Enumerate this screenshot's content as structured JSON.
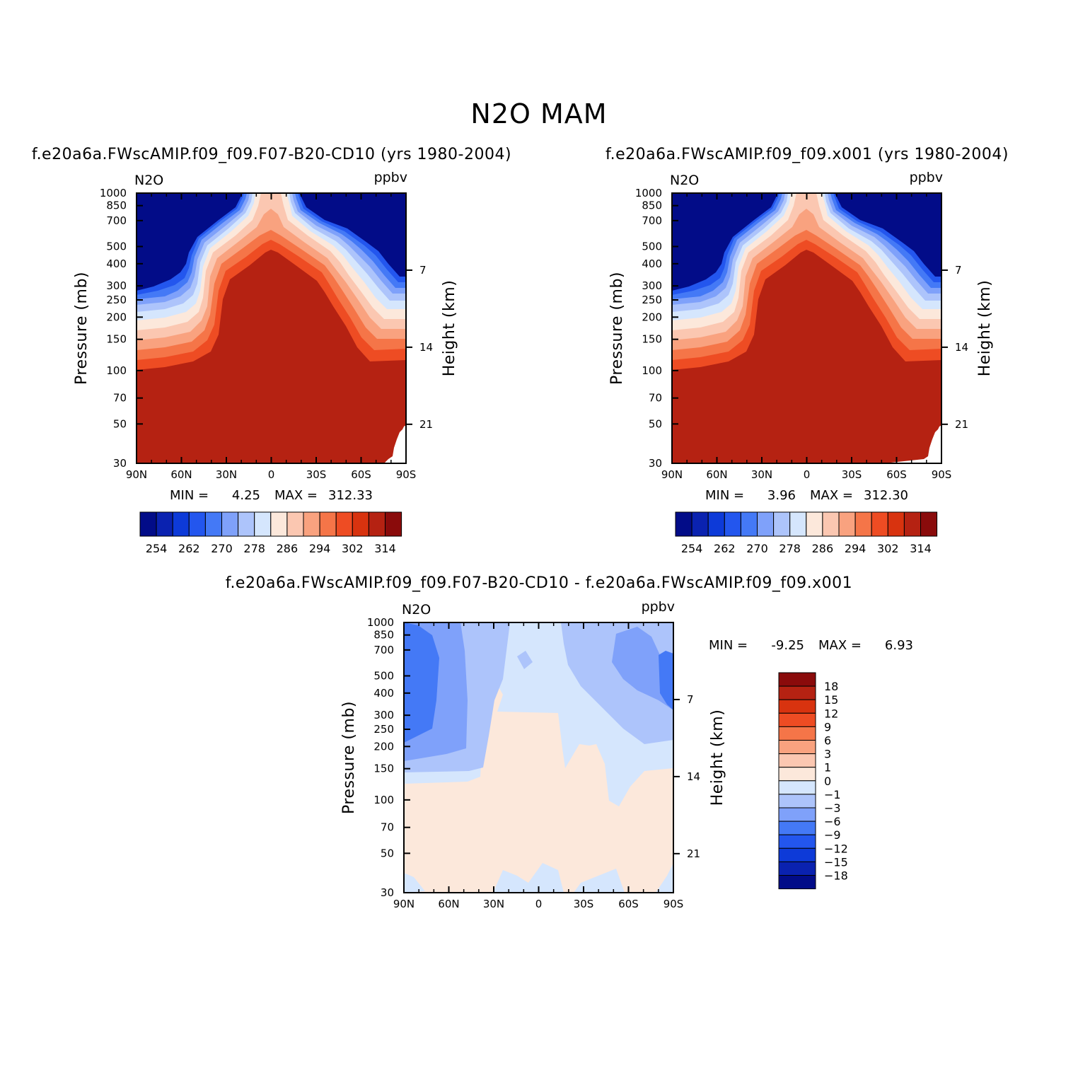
{
  "figure": {
    "title": "N2O MAM"
  },
  "colormaps": {
    "abs": [
      "#020c88",
      "#0a22b0",
      "#0d3ad8",
      "#2356ee",
      "#4479f6",
      "#7fa1fa",
      "#adc4fb",
      "#d5e6fd",
      "#fce8db",
      "#fbc7b1",
      "#f9a27f",
      "#f57548",
      "#ee4c23",
      "#d8330f",
      "#b52212",
      "#8a0b0b"
    ],
    "diff": [
      "#8a0b0b",
      "#b52212",
      "#d8330f",
      "#ee4c23",
      "#f57548",
      "#f9a27f",
      "#fbc7b1",
      "#fce8db",
      "#d5e6fd",
      "#adc4fb",
      "#7fa1fa",
      "#4479f6",
      "#2356ee",
      "#0d3ad8",
      "#0a22b0",
      "#020c88"
    ]
  },
  "chart_data": [
    {
      "type": "contour",
      "title": "f.e20a6a.FWscAMIP.f09_f09.F07-B20-CD10 (yrs 1980-2004)",
      "variable": "N2O",
      "units": "ppbv",
      "ylabel": "Pressure (mb)",
      "y2label": "Height (km)",
      "xticks": [
        "90N",
        "60N",
        "30N",
        "0",
        "30S",
        "60S",
        "90S"
      ],
      "yticks": [
        "30",
        "50",
        "70",
        "100",
        "150",
        "200",
        "250",
        "300",
        "400",
        "500",
        "700",
        "850",
        "1000"
      ],
      "y2ticks": [
        "21",
        "14",
        "7"
      ],
      "min_label": "MIN =",
      "min_value": "4.25",
      "max_label": "MAX =",
      "max_value": "312.33",
      "colorbar_labels": [
        "254",
        "262",
        "270",
        "278",
        "286",
        "294",
        "302",
        "314"
      ],
      "ylim": [
        1000,
        30
      ],
      "xlim": [
        90,
        -90
      ]
    },
    {
      "type": "contour",
      "title": "f.e20a6a.FWscAMIP.f09_f09.x001 (yrs 1980-2004)",
      "variable": "N2O",
      "units": "ppbv",
      "ylabel": "Pressure (mb)",
      "y2label": "Height (km)",
      "xticks": [
        "90N",
        "60N",
        "30N",
        "0",
        "30S",
        "60S",
        "90S"
      ],
      "yticks": [
        "30",
        "50",
        "70",
        "100",
        "150",
        "200",
        "250",
        "300",
        "400",
        "500",
        "700",
        "850",
        "1000"
      ],
      "y2ticks": [
        "21",
        "14",
        "7"
      ],
      "min_label": "MIN =",
      "min_value": "3.96",
      "max_label": "MAX =",
      "max_value": "312.30",
      "colorbar_labels": [
        "254",
        "262",
        "270",
        "278",
        "286",
        "294",
        "302",
        "314"
      ],
      "ylim": [
        1000,
        30
      ],
      "xlim": [
        90,
        -90
      ]
    },
    {
      "type": "contour",
      "title": "f.e20a6a.FWscAMIP.f09_f09.F07-B20-CD10 - f.e20a6a.FWscAMIP.f09_f09.x001",
      "variable": "N2O",
      "units": "ppbv",
      "ylabel": "Pressure (mb)",
      "y2label": "Height (km)",
      "xticks": [
        "90N",
        "60N",
        "30N",
        "0",
        "30S",
        "60S",
        "90S"
      ],
      "yticks": [
        "30",
        "50",
        "70",
        "100",
        "150",
        "200",
        "250",
        "300",
        "400",
        "500",
        "700",
        "850",
        "1000"
      ],
      "y2ticks": [
        "21",
        "14",
        "7"
      ],
      "min_label": "MIN =",
      "min_value": "-9.25",
      "max_label": "MAX =",
      "max_value": "6.93",
      "colorbar_labels": [
        "18",
        "15",
        "12",
        "9",
        "6",
        "3",
        "1",
        "0",
        "-1",
        "-3",
        "-6",
        "-9",
        "-12",
        "-15",
        "-18"
      ],
      "ylim": [
        1000,
        30
      ],
      "xlim": [
        90,
        -90
      ]
    }
  ]
}
